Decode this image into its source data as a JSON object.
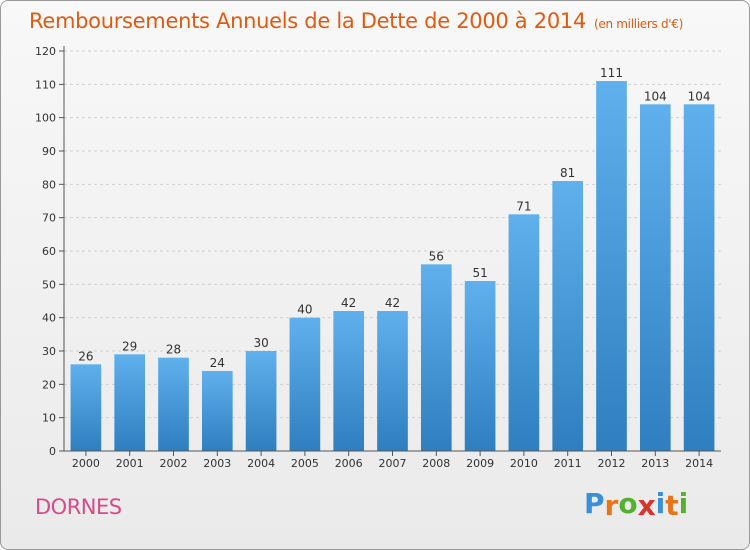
{
  "header": {
    "title": "Remboursements Annuels de la Dette de 2000 à 2014",
    "unit": "(en milliers d'€)"
  },
  "footer": {
    "commune": "DORNES",
    "logo_letters": [
      "P",
      "r",
      "o",
      "x",
      "i",
      "t",
      "i"
    ],
    "logo_colors": [
      "#3a8fd8",
      "#e8751a",
      "#55b030",
      "#d8332a",
      "#3a8fd8",
      "#e8751a",
      "#55b030"
    ]
  },
  "chart_data": {
    "type": "bar",
    "title": "Remboursements Annuels de la Dette de 2000 à 2014",
    "subtitle": "(en milliers d'€)",
    "categories": [
      "2000",
      "2001",
      "2002",
      "2003",
      "2004",
      "2005",
      "2006",
      "2007",
      "2008",
      "2009",
      "2010",
      "2011",
      "2012",
      "2013",
      "2014"
    ],
    "values": [
      26,
      29,
      28,
      24,
      30,
      40,
      42,
      42,
      56,
      51,
      71,
      81,
      111,
      104,
      104
    ],
    "ylim": [
      0,
      120
    ],
    "yticks": [
      0,
      10,
      20,
      30,
      40,
      50,
      60,
      70,
      80,
      90,
      100,
      110,
      120
    ],
    "grid": true,
    "bar_color_top": "#5fb0ec",
    "bar_color_bottom": "#2f7fc0"
  }
}
